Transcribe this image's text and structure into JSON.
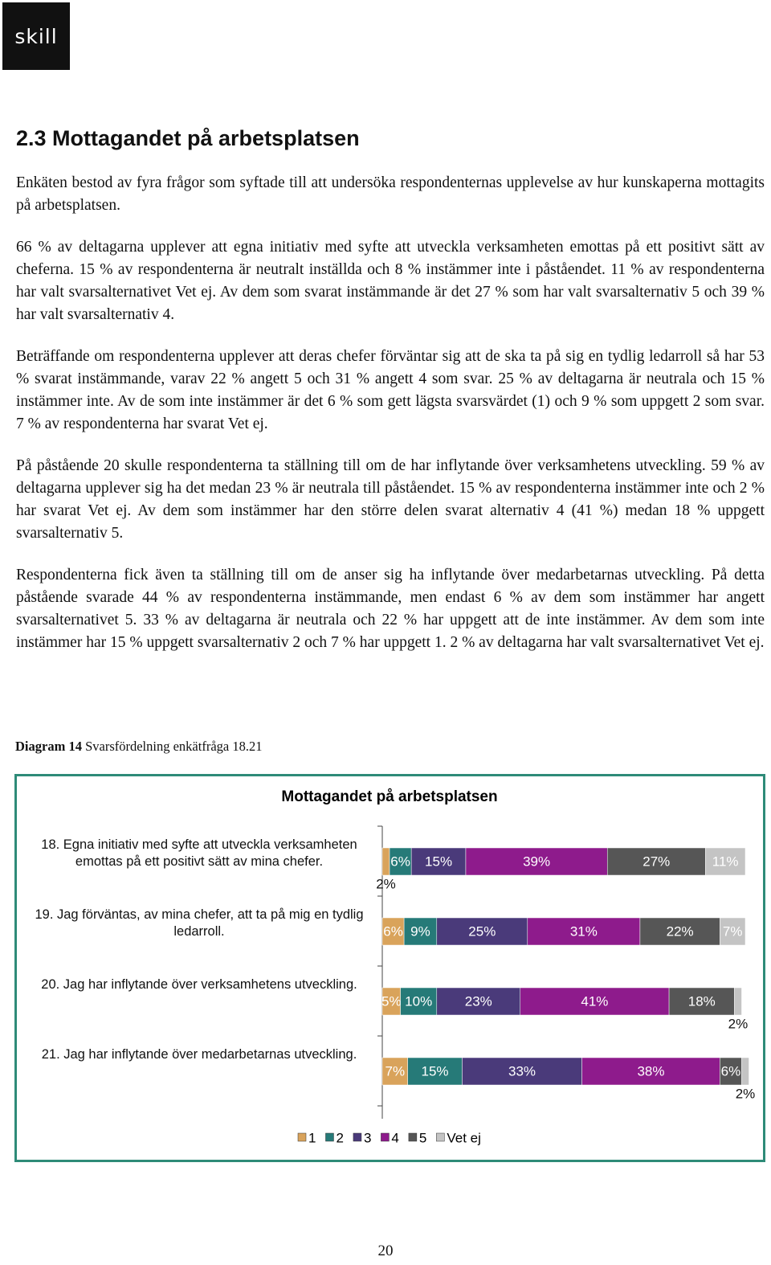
{
  "header": {
    "logo": "skill"
  },
  "heading": "2.3 Mottagandet på arbetsplatsen",
  "paragraphs": [
    "Enkäten bestod av fyra frågor som syftade till att undersöka respondenternas upplevelse av hur kunskaperna mottagits på arbetsplatsen.",
    "66 % av deltagarna upplever att egna initiativ med syfte att utveckla verksamheten emottas på ett positivt sätt av cheferna. 15 % av respondenterna är neutralt inställda och 8 % instämmer inte i påståendet. 11 % av respondenterna har valt svarsalternativet Vet ej. Av dem som svarat instämmande är det 27 % som har valt svarsalternativ 5 och 39 % har valt svarsalternativ 4.",
    "Beträffande om respondenterna upplever att deras chefer förväntar sig att de ska ta på sig en tydlig ledarroll så har 53 % svarat instämmande, varav 22 % angett 5 och 31 % angett 4 som svar. 25 % av deltagarna är neutrala och 15 % instämmer inte. Av de som inte instämmer är det 6 % som gett lägsta svarsvärdet (1) och 9 % som uppgett 2 som svar. 7 % av respondenterna har svarat Vet ej.",
    "På påstående 20 skulle respondenterna ta ställning till om de har inflytande över verksamhetens utveckling. 59 % av deltagarna upplever sig ha det medan 23 % är neutrala till påståendet. 15 % av respondenterna instämmer inte och 2 % har svarat Vet ej. Av dem som instämmer har den större delen svarat alternativ 4 (41 %) medan 18 % uppgett svarsalternativ 5.",
    "Respondenterna fick även ta ställning till om de anser sig ha inflytande över medarbetarnas utveckling. På detta påstående svarade 44 % av respondenterna instämmande, men endast 6 % av dem som instämmer har angett svarsalternativet 5. 33 % av deltagarna är neutrala och 22 % har uppgett att de inte instämmer. Av dem som inte instämmer har 15 % uppgett svarsalternativ 2 och 7 % har uppgett 1. 2 % av deltagarna har valt svarsalternativet Vet ej."
  ],
  "caption": {
    "label": "Diagram 14",
    "text": "Svarsfördelning enkätfråga 18.21"
  },
  "chart_data": {
    "type": "stacked-bar-horizontal",
    "title": "Mottagandet på arbetsplatsen",
    "categories": [
      "18. Egna initiativ med syfte att utveckla verksamheten emottas på ett positivt sätt av mina chefer.",
      "19. Jag förväntas, av mina chefer, att ta på mig en tydlig ledarroll.",
      "20. Jag har inflytande över verksamhetens utveckling.",
      "21. Jag har inflytande över medarbetarnas utveckling."
    ],
    "series": [
      {
        "name": "1",
        "color": "#d9a35b",
        "values": [
          2,
          6,
          5,
          7
        ],
        "value_labels": [
          "2%",
          "6%",
          "5%",
          "7%"
        ]
      },
      {
        "name": "2",
        "color": "#267a78",
        "values": [
          6,
          9,
          10,
          15
        ],
        "value_labels": [
          "6%",
          "9%",
          "10%",
          "15%"
        ]
      },
      {
        "name": "3",
        "color": "#4a3a7a",
        "values": [
          15,
          25,
          23,
          33
        ],
        "value_labels": [
          "15%",
          "25%",
          "23%",
          "33%"
        ]
      },
      {
        "name": "4",
        "color": "#8e1b8c",
        "values": [
          39,
          31,
          41,
          38
        ],
        "value_labels": [
          "39%",
          "31%",
          "41%",
          "38%"
        ]
      },
      {
        "name": "5",
        "color": "#565656",
        "values": [
          27,
          22,
          18,
          6
        ],
        "value_labels": [
          "27%",
          "22%",
          "18%",
          "6%"
        ]
      },
      {
        "name": "Vet ej",
        "color": "#c4c4c4",
        "values": [
          11,
          7,
          2,
          2
        ],
        "value_labels": [
          "11%",
          "7%",
          "2%",
          "2%"
        ]
      }
    ],
    "legend": "bottom"
  },
  "page_number": "20"
}
